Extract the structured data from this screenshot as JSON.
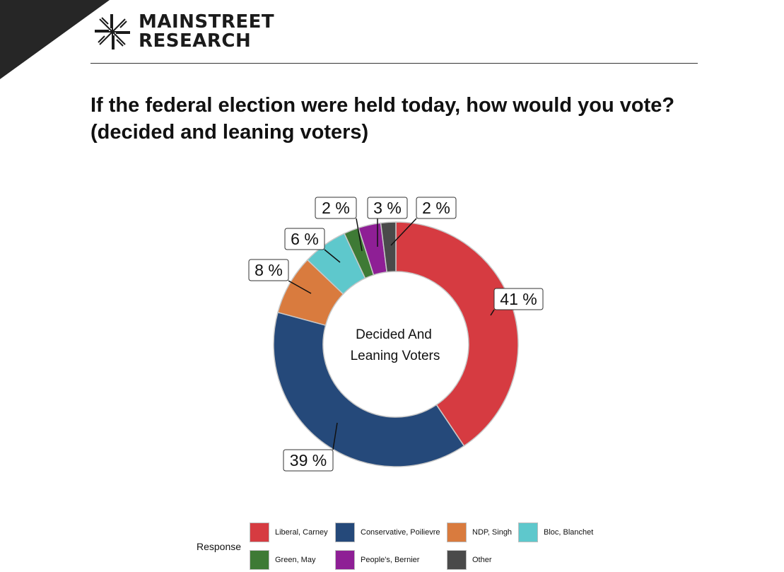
{
  "brand": {
    "line1": "MAINSTREET",
    "line2": "RESEARCH"
  },
  "title": {
    "line1": "If the federal election were held today, how would you vote?",
    "line2": "(decided and leaning voters)"
  },
  "chart_data": {
    "type": "pie",
    "center_label_lines": [
      "Decided And",
      "Leaning Voters"
    ],
    "legend_title": "Response",
    "slices": [
      {
        "name": "Liberal, Carney",
        "value": 41,
        "label": "41 %",
        "color": "#d63b41"
      },
      {
        "name": "Conservative, Poilievre",
        "value": 39,
        "label": "39 %",
        "color": "#25497a"
      },
      {
        "name": "NDP, Singh",
        "value": 8,
        "label": "8 %",
        "color": "#d97b3e"
      },
      {
        "name": "Bloc, Blanchet",
        "value": 6,
        "label": "6 %",
        "color": "#5ec8cc"
      },
      {
        "name": "Green, May",
        "value": 2,
        "label": "2 %",
        "color": "#3e7a35"
      },
      {
        "name": "People's, Bernier",
        "value": 3,
        "label": "3 %",
        "color": "#8e1f95"
      },
      {
        "name": "Other",
        "value": 2,
        "label": "2 %",
        "color": "#4a4a4a"
      }
    ],
    "legend_placement": "bottom"
  }
}
